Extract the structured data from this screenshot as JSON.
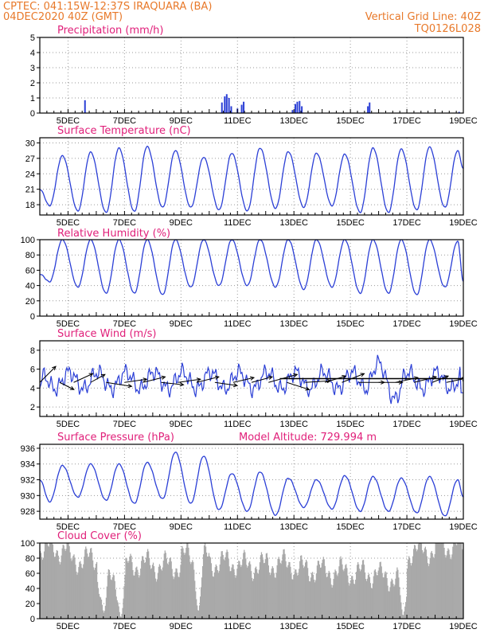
{
  "header": {
    "source_line": "CPTEC:   041:15W-12:37S   IRAQUARA (BA)",
    "date_line": "04DEC2020 40Z (GMT)",
    "grid_note": "Vertical Grid Line: 40Z",
    "model_code": "TQ0126L028"
  },
  "x_axis_labels": [
    "5DEC",
    "7DEC",
    "9DEC",
    "11DEC",
    "13DEC",
    "15DEC",
    "17DEC",
    "19DEC"
  ],
  "colors": {
    "line": "#2b3fd6",
    "cloud": "#a9a9a9",
    "header": "#e8792a",
    "title": "#e0207a",
    "wind_arrow": "#000000"
  },
  "chart_data": [
    {
      "type": "bar",
      "title": "Precipitation (mm/h)",
      "x_range_days": [
        4.0,
        19.0
      ],
      "ylim": [
        0,
        5
      ],
      "yticks": [
        "0",
        "1",
        "2",
        "3",
        "4",
        "5"
      ],
      "grid": true,
      "events": [
        {
          "day": 5.6,
          "value": 0.85
        },
        {
          "day": 10.45,
          "value": 0.7
        },
        {
          "day": 10.55,
          "value": 1.1
        },
        {
          "day": 10.62,
          "value": 1.25
        },
        {
          "day": 10.7,
          "value": 1.0
        },
        {
          "day": 10.78,
          "value": 0.45
        },
        {
          "day": 11.0,
          "value": 0.3
        },
        {
          "day": 11.15,
          "value": 0.55
        },
        {
          "day": 11.22,
          "value": 0.75
        },
        {
          "day": 12.95,
          "value": 0.2
        },
        {
          "day": 13.05,
          "value": 0.6
        },
        {
          "day": 13.12,
          "value": 0.75
        },
        {
          "day": 13.2,
          "value": 0.8
        },
        {
          "day": 13.28,
          "value": 0.45
        },
        {
          "day": 15.62,
          "value": 0.45
        },
        {
          "day": 15.68,
          "value": 0.7
        },
        {
          "day": 18.85,
          "value": 0.08
        }
      ]
    },
    {
      "type": "line",
      "title": "Surface Temperature (nC)",
      "x_range_days": [
        4.0,
        19.0
      ],
      "ylim": [
        16,
        31
      ],
      "yticks": [
        "18",
        "21",
        "24",
        "27",
        "30"
      ],
      "grid": true,
      "daily_max": [
        27.5,
        28.2,
        29.0,
        29.3,
        28.5,
        27.2,
        28.0,
        29.0,
        28.3,
        28.0,
        27.8,
        29.0,
        28.8,
        29.2,
        28.5
      ],
      "daily_min": [
        17.8,
        16.8,
        16.5,
        16.7,
        17.5,
        17.5,
        17.0,
        16.8,
        17.3,
        17.5,
        17.8,
        16.5,
        16.5,
        17.0,
        17.5
      ],
      "start_value": 21.0,
      "end_value": 25.0
    },
    {
      "type": "line",
      "title": "Relative Humidity (%)",
      "x_range_days": [
        4.0,
        19.0
      ],
      "ylim": [
        0,
        100
      ],
      "yticks": [
        "0",
        "20",
        "40",
        "60",
        "80",
        "100"
      ],
      "grid": true,
      "daily_max": [
        100,
        100,
        100,
        100,
        100,
        100,
        100,
        100,
        100,
        100,
        100,
        100,
        100,
        100,
        98
      ],
      "daily_min": [
        45,
        38,
        30,
        30,
        28,
        38,
        40,
        40,
        38,
        35,
        38,
        30,
        30,
        28,
        38
      ],
      "start_value": 55,
      "end_value": 45
    },
    {
      "type": "line",
      "title": "Surface Wind (m/s)",
      "x_range_days": [
        4.0,
        19.0
      ],
      "ylim": [
        1,
        9
      ],
      "yticks": [
        "2",
        "4",
        "6",
        "8"
      ],
      "grid": true,
      "base_speed": 4.8,
      "start_value": 4.0,
      "end_value": 3.5,
      "wind_arrows": [
        {
          "day": 4.0,
          "dx": 0.5,
          "dy": 1.0
        },
        {
          "day": 4.7,
          "dx": 0.45,
          "dy": -0.45
        },
        {
          "day": 5.2,
          "dx": 0.6,
          "dy": 0.55
        },
        {
          "day": 5.8,
          "dx": 0.45,
          "dy": 0.5
        },
        {
          "day": 6.35,
          "dx": 0.8,
          "dy": -0.25
        },
        {
          "day": 7.0,
          "dx": 0.7,
          "dy": 0.2
        },
        {
          "day": 7.65,
          "dx": 0.7,
          "dy": 0.35
        },
        {
          "day": 8.3,
          "dx": 0.7,
          "dy": -0.15
        },
        {
          "day": 8.9,
          "dx": 0.7,
          "dy": 0.2
        },
        {
          "day": 9.55,
          "dx": 0.7,
          "dy": 0.35
        },
        {
          "day": 10.2,
          "dx": 0.7,
          "dy": -0.2
        },
        {
          "day": 10.85,
          "dx": 0.65,
          "dy": 0.3
        },
        {
          "day": 11.5,
          "dx": 0.65,
          "dy": 0.35
        },
        {
          "day": 12.1,
          "dx": 0.9,
          "dy": 0.5
        },
        {
          "day": 12.75,
          "dx": 0.7,
          "dy": -0.45
        },
        {
          "day": 13.4,
          "dx": 0.8,
          "dy": 0.1
        },
        {
          "day": 14.1,
          "dx": 0.65,
          "dy": 0.4
        },
        {
          "day": 14.7,
          "dx": 0.7,
          "dy": 0.55
        },
        {
          "day": 15.3,
          "dx": 0.8,
          "dy": 0.0
        },
        {
          "day": 16.0,
          "dx": 0.75,
          "dy": 0.0
        },
        {
          "day": 16.6,
          "dx": 0.7,
          "dy": 0.3
        },
        {
          "day": 17.25,
          "dx": 0.7,
          "dy": 0.35
        },
        {
          "day": 17.9,
          "dx": 0.5,
          "dy": 0.4
        },
        {
          "day": 18.4,
          "dx": 0.6,
          "dy": 0.25
        }
      ]
    },
    {
      "type": "line",
      "title": "Surface Pressure (hPa)",
      "annotation": "Model Altitude: 729.994 m",
      "x_range_days": [
        4.0,
        19.0
      ],
      "ylim": [
        927,
        936.5
      ],
      "yticks": [
        "928",
        "930",
        "932",
        "934",
        "936"
      ],
      "grid": true,
      "daily_max": [
        933.8,
        934.0,
        934.0,
        934.2,
        935.5,
        935.0,
        932.8,
        933.0,
        932.2,
        932.0,
        932.5,
        932.4,
        932.2,
        932.4,
        932.0
      ],
      "daily_min": [
        929.2,
        929.8,
        929.4,
        929.0,
        929.6,
        929.0,
        928.2,
        928.0,
        927.5,
        928.5,
        928.3,
        928.0,
        928.0,
        927.8,
        927.4
      ],
      "start_value": 932.0,
      "end_value": 929.8
    },
    {
      "type": "area",
      "title": "Cloud Cover (%)",
      "x_range_days": [
        4.0,
        19.0
      ],
      "ylim": [
        0,
        100
      ],
      "yticks": [
        "0",
        "20",
        "40",
        "60",
        "80",
        "100"
      ],
      "grid": true,
      "daily_cover": [
        92,
        78,
        55,
        72,
        70,
        82,
        74,
        70,
        72,
        65,
        62,
        60,
        55,
        90,
        96
      ],
      "low_dips": [
        {
          "day": 6.25,
          "value": 8
        },
        {
          "day": 6.85,
          "value": 2
        },
        {
          "day": 9.6,
          "value": 10
        },
        {
          "day": 16.85,
          "value": 4
        }
      ]
    }
  ]
}
